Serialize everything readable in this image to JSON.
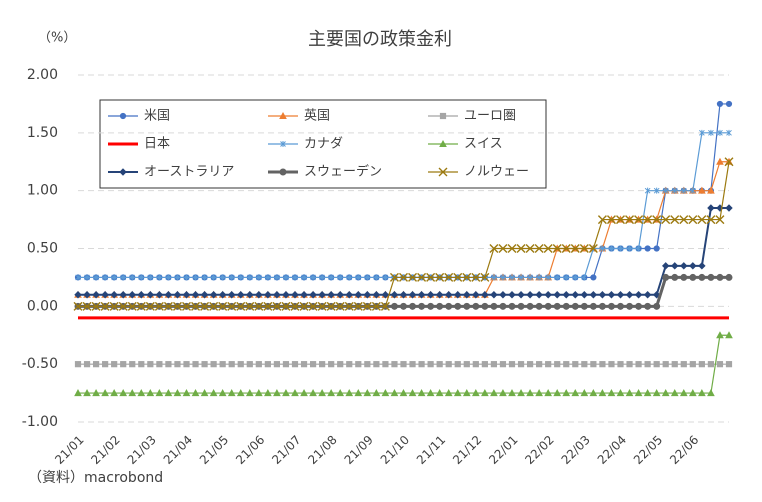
{
  "chart_data": {
    "type": "line",
    "title": "主要国の政策金利",
    "y_unit": "（%）",
    "source": "（資料）macrobond",
    "categories": [
      "21/01",
      null,
      null,
      null,
      "21/02",
      null,
      null,
      null,
      "21/03",
      null,
      null,
      null,
      "21/04",
      null,
      null,
      null,
      "21/05",
      null,
      null,
      null,
      "21/06",
      null,
      null,
      null,
      "21/07",
      null,
      null,
      null,
      "21/08",
      null,
      null,
      null,
      "21/09",
      null,
      null,
      null,
      "21/10",
      null,
      null,
      null,
      "21/11",
      null,
      null,
      null,
      "21/12",
      null,
      null,
      null,
      "22/01",
      null,
      null,
      null,
      "22/02",
      null,
      null,
      null,
      "22/03",
      null,
      null,
      null,
      "22/04",
      null,
      null,
      null,
      "22/05",
      null,
      null,
      null,
      "22/06",
      null,
      null,
      null,
      null
    ],
    "ylim": [
      -1,
      2
    ],
    "yticks": [
      {
        "value": -1,
        "label": "-1.00"
      },
      {
        "value": -0.5,
        "label": "-0.50"
      },
      {
        "value": 0,
        "label": "0.00"
      },
      {
        "value": 0.5,
        "label": "0.50"
      },
      {
        "value": 1,
        "label": "1.00"
      },
      {
        "value": 1.5,
        "label": "1.50"
      },
      {
        "value": 2,
        "label": "2.00"
      }
    ],
    "grid": true,
    "negative_tick_color": "#ff0000",
    "series": [
      {
        "name": "米国",
        "color": "#4472c4",
        "marker": "circle",
        "width": 1.2,
        "values": [
          0.25,
          0.25,
          0.25,
          0.25,
          0.25,
          0.25,
          0.25,
          0.25,
          0.25,
          0.25,
          0.25,
          0.25,
          0.25,
          0.25,
          0.25,
          0.25,
          0.25,
          0.25,
          0.25,
          0.25,
          0.25,
          0.25,
          0.25,
          0.25,
          0.25,
          0.25,
          0.25,
          0.25,
          0.25,
          0.25,
          0.25,
          0.25,
          0.25,
          0.25,
          0.25,
          0.25,
          0.25,
          0.25,
          0.25,
          0.25,
          0.25,
          0.25,
          0.25,
          0.25,
          0.25,
          0.25,
          0.25,
          0.25,
          0.25,
          0.25,
          0.25,
          0.25,
          0.25,
          0.25,
          0.25,
          0.25,
          0.25,
          0.25,
          0.5,
          0.5,
          0.5,
          0.5,
          0.5,
          0.5,
          0.5,
          1,
          1,
          1,
          1,
          1,
          1,
          1.75,
          1.75
        ]
      },
      {
        "name": "英国",
        "color": "#ed7d31",
        "marker": "triangle",
        "width": 1.2,
        "values": [
          0.1,
          0.1,
          0.1,
          0.1,
          0.1,
          0.1,
          0.1,
          0.1,
          0.1,
          0.1,
          0.1,
          0.1,
          0.1,
          0.1,
          0.1,
          0.1,
          0.1,
          0.1,
          0.1,
          0.1,
          0.1,
          0.1,
          0.1,
          0.1,
          0.1,
          0.1,
          0.1,
          0.1,
          0.1,
          0.1,
          0.1,
          0.1,
          0.1,
          0.1,
          0.1,
          0.1,
          0.1,
          0.1,
          0.1,
          0.1,
          0.1,
          0.1,
          0.1,
          0.1,
          0.1,
          0.1,
          0.25,
          0.25,
          0.25,
          0.25,
          0.25,
          0.25,
          0.25,
          0.5,
          0.5,
          0.5,
          0.5,
          0.5,
          0.5,
          0.75,
          0.75,
          0.75,
          0.75,
          0.75,
          0.75,
          1,
          1,
          1,
          1,
          1,
          1,
          1.25,
          1.25
        ]
      },
      {
        "name": "ユーロ圏",
        "color": "#a5a5a5",
        "marker": "square",
        "width": 1.2,
        "values": [
          -0.5,
          -0.5,
          -0.5,
          -0.5,
          -0.5,
          -0.5,
          -0.5,
          -0.5,
          -0.5,
          -0.5,
          -0.5,
          -0.5,
          -0.5,
          -0.5,
          -0.5,
          -0.5,
          -0.5,
          -0.5,
          -0.5,
          -0.5,
          -0.5,
          -0.5,
          -0.5,
          -0.5,
          -0.5,
          -0.5,
          -0.5,
          -0.5,
          -0.5,
          -0.5,
          -0.5,
          -0.5,
          -0.5,
          -0.5,
          -0.5,
          -0.5,
          -0.5,
          -0.5,
          -0.5,
          -0.5,
          -0.5,
          -0.5,
          -0.5,
          -0.5,
          -0.5,
          -0.5,
          -0.5,
          -0.5,
          -0.5,
          -0.5,
          -0.5,
          -0.5,
          -0.5,
          -0.5,
          -0.5,
          -0.5,
          -0.5,
          -0.5,
          -0.5,
          -0.5,
          -0.5,
          -0.5,
          -0.5,
          -0.5,
          -0.5,
          -0.5,
          -0.5,
          -0.5,
          -0.5,
          -0.5,
          -0.5,
          -0.5,
          -0.5
        ]
      },
      {
        "name": "日本",
        "color": "#ff0000",
        "marker": "none",
        "width": 3,
        "values": [
          -0.1,
          -0.1,
          -0.1,
          -0.1,
          -0.1,
          -0.1,
          -0.1,
          -0.1,
          -0.1,
          -0.1,
          -0.1,
          -0.1,
          -0.1,
          -0.1,
          -0.1,
          -0.1,
          -0.1,
          -0.1,
          -0.1,
          -0.1,
          -0.1,
          -0.1,
          -0.1,
          -0.1,
          -0.1,
          -0.1,
          -0.1,
          -0.1,
          -0.1,
          -0.1,
          -0.1,
          -0.1,
          -0.1,
          -0.1,
          -0.1,
          -0.1,
          -0.1,
          -0.1,
          -0.1,
          -0.1,
          -0.1,
          -0.1,
          -0.1,
          -0.1,
          -0.1,
          -0.1,
          -0.1,
          -0.1,
          -0.1,
          -0.1,
          -0.1,
          -0.1,
          -0.1,
          -0.1,
          -0.1,
          -0.1,
          -0.1,
          -0.1,
          -0.1,
          -0.1,
          -0.1,
          -0.1,
          -0.1,
          -0.1,
          -0.1,
          -0.1,
          -0.1,
          -0.1,
          -0.1,
          -0.1,
          -0.1,
          -0.1,
          -0.1
        ]
      },
      {
        "name": "カナダ",
        "color": "#5b9bd5",
        "marker": "star",
        "width": 1.2,
        "values": [
          0.25,
          0.25,
          0.25,
          0.25,
          0.25,
          0.25,
          0.25,
          0.25,
          0.25,
          0.25,
          0.25,
          0.25,
          0.25,
          0.25,
          0.25,
          0.25,
          0.25,
          0.25,
          0.25,
          0.25,
          0.25,
          0.25,
          0.25,
          0.25,
          0.25,
          0.25,
          0.25,
          0.25,
          0.25,
          0.25,
          0.25,
          0.25,
          0.25,
          0.25,
          0.25,
          0.25,
          0.25,
          0.25,
          0.25,
          0.25,
          0.25,
          0.25,
          0.25,
          0.25,
          0.25,
          0.25,
          0.25,
          0.25,
          0.25,
          0.25,
          0.25,
          0.25,
          0.25,
          0.25,
          0.25,
          0.25,
          0.25,
          0.5,
          0.5,
          0.5,
          0.5,
          0.5,
          0.5,
          1,
          1,
          1,
          1,
          1,
          1,
          1.5,
          1.5,
          1.5,
          1.5
        ]
      },
      {
        "name": "スイス",
        "color": "#70ad47",
        "marker": "triangle",
        "width": 1.2,
        "values": [
          -0.75,
          -0.75,
          -0.75,
          -0.75,
          -0.75,
          -0.75,
          -0.75,
          -0.75,
          -0.75,
          -0.75,
          -0.75,
          -0.75,
          -0.75,
          -0.75,
          -0.75,
          -0.75,
          -0.75,
          -0.75,
          -0.75,
          -0.75,
          -0.75,
          -0.75,
          -0.75,
          -0.75,
          -0.75,
          -0.75,
          -0.75,
          -0.75,
          -0.75,
          -0.75,
          -0.75,
          -0.75,
          -0.75,
          -0.75,
          -0.75,
          -0.75,
          -0.75,
          -0.75,
          -0.75,
          -0.75,
          -0.75,
          -0.75,
          -0.75,
          -0.75,
          -0.75,
          -0.75,
          -0.75,
          -0.75,
          -0.75,
          -0.75,
          -0.75,
          -0.75,
          -0.75,
          -0.75,
          -0.75,
          -0.75,
          -0.75,
          -0.75,
          -0.75,
          -0.75,
          -0.75,
          -0.75,
          -0.75,
          -0.75,
          -0.75,
          -0.75,
          -0.75,
          -0.75,
          -0.75,
          -0.75,
          -0.75,
          -0.25,
          -0.25
        ]
      },
      {
        "name": "オーストラリア",
        "color": "#264478",
        "marker": "diamond",
        "width": 2,
        "values": [
          0.1,
          0.1,
          0.1,
          0.1,
          0.1,
          0.1,
          0.1,
          0.1,
          0.1,
          0.1,
          0.1,
          0.1,
          0.1,
          0.1,
          0.1,
          0.1,
          0.1,
          0.1,
          0.1,
          0.1,
          0.1,
          0.1,
          0.1,
          0.1,
          0.1,
          0.1,
          0.1,
          0.1,
          0.1,
          0.1,
          0.1,
          0.1,
          0.1,
          0.1,
          0.1,
          0.1,
          0.1,
          0.1,
          0.1,
          0.1,
          0.1,
          0.1,
          0.1,
          0.1,
          0.1,
          0.1,
          0.1,
          0.1,
          0.1,
          0.1,
          0.1,
          0.1,
          0.1,
          0.1,
          0.1,
          0.1,
          0.1,
          0.1,
          0.1,
          0.1,
          0.1,
          0.1,
          0.1,
          0.1,
          0.1,
          0.35,
          0.35,
          0.35,
          0.35,
          0.35,
          0.85,
          0.85,
          0.85
        ]
      },
      {
        "name": "スウェーデン",
        "color": "#636363",
        "marker": "circle",
        "width": 3,
        "values": [
          0,
          0,
          0,
          0,
          0,
          0,
          0,
          0,
          0,
          0,
          0,
          0,
          0,
          0,
          0,
          0,
          0,
          0,
          0,
          0,
          0,
          0,
          0,
          0,
          0,
          0,
          0,
          0,
          0,
          0,
          0,
          0,
          0,
          0,
          0,
          0,
          0,
          0,
          0,
          0,
          0,
          0,
          0,
          0,
          0,
          0,
          0,
          0,
          0,
          0,
          0,
          0,
          0,
          0,
          0,
          0,
          0,
          0,
          0,
          0,
          0,
          0,
          0,
          0,
          0,
          0.25,
          0.25,
          0.25,
          0.25,
          0.25,
          0.25,
          0.25,
          0.25
        ]
      },
      {
        "name": "ノルウェー",
        "color": "#9c7a10",
        "marker": "x",
        "width": 1.2,
        "values": [
          0,
          0,
          0,
          0,
          0,
          0,
          0,
          0,
          0,
          0,
          0,
          0,
          0,
          0,
          0,
          0,
          0,
          0,
          0,
          0,
          0,
          0,
          0,
          0,
          0,
          0,
          0,
          0,
          0,
          0,
          0,
          0,
          0,
          0,
          0,
          0.25,
          0.25,
          0.25,
          0.25,
          0.25,
          0.25,
          0.25,
          0.25,
          0.25,
          0.25,
          0.25,
          0.5,
          0.5,
          0.5,
          0.5,
          0.5,
          0.5,
          0.5,
          0.5,
          0.5,
          0.5,
          0.5,
          0.5,
          0.75,
          0.75,
          0.75,
          0.75,
          0.75,
          0.75,
          0.75,
          0.75,
          0.75,
          0.75,
          0.75,
          0.75,
          0.75,
          0.75,
          1.25
        ]
      }
    ]
  }
}
